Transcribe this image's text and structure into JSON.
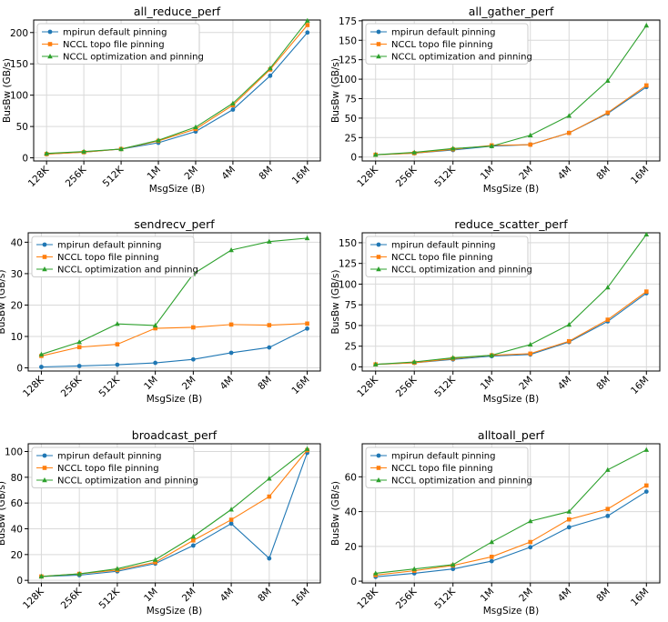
{
  "colors": {
    "series": [
      "#1f77b4",
      "#ff7f0e",
      "#2ca02c"
    ],
    "grid": "#d9d9d9",
    "frame": "#000000"
  },
  "chart_data": [
    {
      "type": "line",
      "title": "all_reduce_perf",
      "xlabel": "MsgSize (B)",
      "ylabel": "BusBw (GB/s)",
      "categories": [
        "128K",
        "256K",
        "512K",
        "1M",
        "2M",
        "4M",
        "8M",
        "16M"
      ],
      "ylim": [
        -5,
        220
      ],
      "yticks": [
        0,
        50,
        100,
        150,
        200
      ],
      "grid": true,
      "legend": "top-left",
      "markers": [
        "circle",
        "square",
        "triangle"
      ],
      "series": [
        {
          "name": "mpirun default pinning",
          "values": [
            6,
            9,
            14,
            24,
            42,
            77,
            131,
            200
          ]
        },
        {
          "name": "NCCL topo file pinning",
          "values": [
            6,
            9,
            14,
            27,
            46,
            84,
            141,
            212
          ]
        },
        {
          "name": "NCCL optimization and pinning",
          "values": [
            7,
            10,
            14,
            28,
            49,
            87,
            143,
            219
          ]
        }
      ]
    },
    {
      "type": "line",
      "title": "all_gather_perf",
      "xlabel": "MsgSize (B)",
      "ylabel": "BusBw (GB/s)",
      "categories": [
        "128K",
        "256K",
        "512K",
        "1M",
        "2M",
        "4M",
        "8M",
        "16M"
      ],
      "ylim": [
        -5,
        176
      ],
      "yticks": [
        0,
        25,
        50,
        75,
        100,
        125,
        150,
        175
      ],
      "grid": true,
      "legend": "top-left",
      "markers": [
        "circle",
        "square",
        "triangle"
      ],
      "series": [
        {
          "name": "mpirun default pinning",
          "values": [
            3,
            5,
            9,
            14,
            16,
            31,
            56,
            90
          ]
        },
        {
          "name": "NCCL topo file pinning",
          "values": [
            3,
            5,
            10,
            15,
            16,
            31,
            57,
            92
          ]
        },
        {
          "name": "NCCL optimization and pinning",
          "values": [
            3,
            6,
            11,
            14,
            28,
            53,
            98,
            169
          ]
        }
      ]
    },
    {
      "type": "line",
      "title": "sendrecv_perf",
      "xlabel": "MsgSize (B)",
      "ylabel": "BusBw (GB/s)",
      "categories": [
        "128K",
        "256K",
        "512K",
        "1M",
        "2M",
        "4M",
        "8M",
        "16M"
      ],
      "ylim": [
        -1,
        43
      ],
      "yticks": [
        0,
        10,
        20,
        30,
        40
      ],
      "grid": true,
      "legend": "top-left",
      "markers": [
        "circle",
        "square",
        "triangle"
      ],
      "series": [
        {
          "name": "mpirun default pinning",
          "values": [
            0.3,
            0.6,
            1.0,
            1.6,
            2.7,
            4.8,
            6.5,
            12.5
          ]
        },
        {
          "name": "NCCL topo file pinning",
          "values": [
            3.8,
            6.6,
            7.5,
            12.6,
            12.9,
            13.8,
            13.6,
            14.1
          ]
        },
        {
          "name": "NCCL optimization and pinning",
          "values": [
            4.3,
            8.2,
            14.0,
            13.5,
            29.9,
            37.5,
            40.2,
            41.3
          ]
        }
      ]
    },
    {
      "type": "line",
      "title": "reduce_scatter_perf",
      "xlabel": "MsgSize (B)",
      "ylabel": "BusBw (GB/s)",
      "categories": [
        "128K",
        "256K",
        "512K",
        "1M",
        "2M",
        "4M",
        "8M",
        "16M"
      ],
      "ylim": [
        -5,
        162
      ],
      "yticks": [
        0,
        25,
        50,
        75,
        100,
        125,
        150
      ],
      "grid": true,
      "legend": "top-left",
      "markers": [
        "circle",
        "square",
        "triangle"
      ],
      "series": [
        {
          "name": "mpirun default pinning",
          "values": [
            3,
            5,
            9,
            13,
            15,
            30,
            55,
            89
          ]
        },
        {
          "name": "NCCL topo file pinning",
          "values": [
            3,
            5,
            10,
            14,
            16,
            31,
            57,
            91
          ]
        },
        {
          "name": "NCCL optimization and pinning",
          "values": [
            3,
            6,
            11,
            14,
            27,
            51,
            96,
            160
          ]
        }
      ]
    },
    {
      "type": "line",
      "title": "broadcast_perf",
      "xlabel": "MsgSize (B)",
      "ylabel": "BusBw (GB/s)",
      "categories": [
        "128K",
        "256K",
        "512K",
        "1M",
        "2M",
        "4M",
        "8M",
        "16M"
      ],
      "ylim": [
        -2,
        106
      ],
      "yticks": [
        0,
        20,
        40,
        60,
        80,
        100
      ],
      "grid": true,
      "legend": "top-left",
      "markers": [
        "circle",
        "square",
        "triangle"
      ],
      "series": [
        {
          "name": "mpirun default pinning",
          "values": [
            3,
            4,
            7,
            13,
            27,
            44,
            17,
            99
          ]
        },
        {
          "name": "NCCL topo file pinning",
          "values": [
            3,
            5,
            8,
            14,
            31,
            47,
            65,
            101
          ]
        },
        {
          "name": "NCCL optimization and pinning",
          "values": [
            3,
            5,
            9,
            16,
            34,
            55,
            79,
            102
          ]
        }
      ]
    },
    {
      "type": "line",
      "title": "alltoall_perf",
      "xlabel": "MsgSize (B)",
      "ylabel": "BusBw (GB/s)",
      "categories": [
        "128K",
        "256K",
        "512K",
        "1M",
        "2M",
        "4M",
        "8M",
        "16M"
      ],
      "ylim": [
        -1,
        79
      ],
      "yticks": [
        0,
        20,
        40,
        60
      ],
      "grid": true,
      "legend": "top-left",
      "markers": [
        "circle",
        "square",
        "triangle"
      ],
      "series": [
        {
          "name": "mpirun default pinning",
          "values": [
            2.5,
            4.5,
            7.0,
            11.5,
            19.5,
            31.0,
            37.5,
            51.5
          ]
        },
        {
          "name": "NCCL topo file pinning",
          "values": [
            3.5,
            6.0,
            9.0,
            14.0,
            22.5,
            35.5,
            41.5,
            55.0
          ]
        },
        {
          "name": "NCCL optimization and pinning",
          "values": [
            4.5,
            7.0,
            9.5,
            22.5,
            34.5,
            40.0,
            64.0,
            75.5
          ]
        }
      ]
    }
  ]
}
